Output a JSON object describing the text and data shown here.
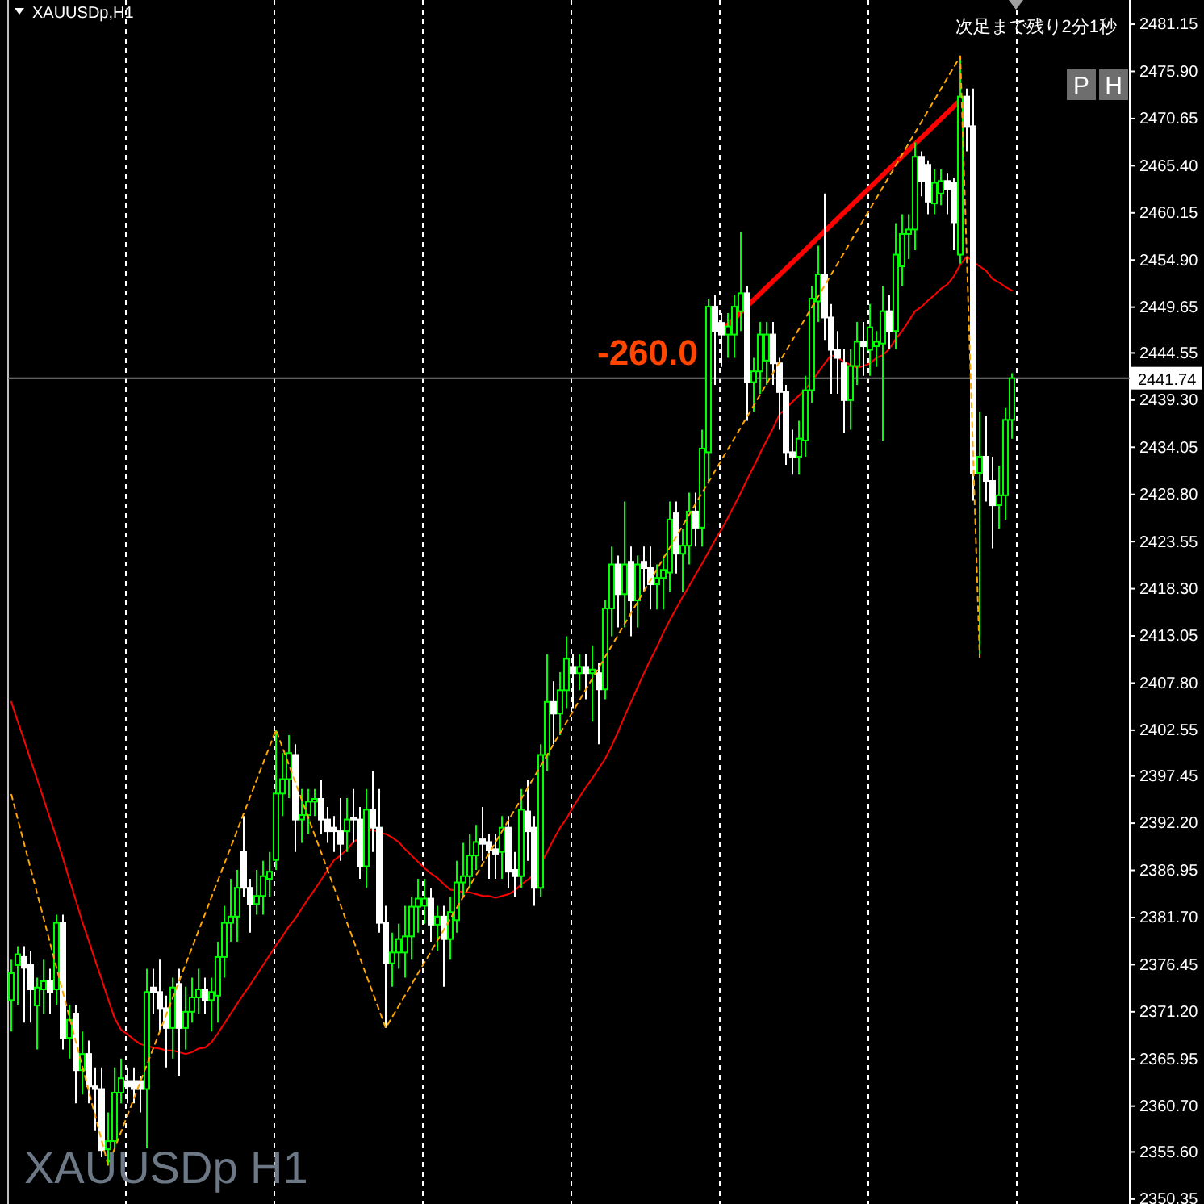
{
  "chart_data": {
    "type": "candlestick",
    "title": "XAUUSDp,H1",
    "annotations": [
      "XAUUSDp H1",
      "次足まで残り2分1秒",
      "P",
      "H",
      "-260.0"
    ],
    "categories": [
      null,
      null,
      null,
      null,
      null,
      null,
      null,
      null,
      null,
      null,
      null,
      null,
      null,
      null,
      null,
      null,
      null,
      null,
      null,
      null,
      null,
      null,
      null,
      null,
      null,
      null,
      null,
      null,
      null,
      null,
      null,
      null,
      null,
      null,
      null,
      null,
      null,
      null,
      null,
      null,
      null,
      null,
      null,
      null,
      null,
      null,
      null,
      null,
      null,
      null,
      null,
      null,
      null,
      null,
      null,
      null,
      null,
      null,
      null,
      null,
      null,
      null,
      null,
      null,
      null,
      null,
      null,
      null,
      null,
      null,
      null,
      null,
      null,
      null,
      null,
      null,
      null,
      null,
      null,
      null,
      null,
      null,
      null,
      null,
      null,
      null,
      null,
      null,
      null,
      null,
      null,
      null,
      null,
      null,
      null,
      null,
      null,
      null,
      null,
      null,
      null,
      null,
      null,
      null,
      null,
      null,
      null,
      null,
      null,
      null,
      null,
      null,
      null,
      null,
      null,
      null,
      null,
      null,
      null,
      null,
      null,
      null,
      null,
      null,
      null,
      null,
      null,
      null,
      null,
      null,
      null,
      null,
      null,
      null,
      null,
      null,
      null,
      null,
      null,
      null,
      null,
      null,
      null,
      null,
      null,
      null,
      null,
      null,
      null,
      null,
      null,
      null,
      null,
      null,
      null,
      null
    ],
    "ohlc": [
      [
        2372.5,
        2377,
        2369,
        2375.5
      ],
      [
        2376.4,
        2378.5,
        2372,
        2377.6
      ],
      [
        2377.3,
        2378.5,
        2370,
        2376.1
      ],
      [
        2376.4,
        2378,
        2370,
        2373.7
      ],
      [
        2371.9,
        2375,
        2367,
        2373.9
      ],
      [
        2373.7,
        2377,
        2371,
        2374.6
      ],
      [
        2374.6,
        2376,
        2371,
        2373.4
      ],
      [
        2373.7,
        2382,
        2372,
        2381.1
      ],
      [
        2381.1,
        2382,
        2367,
        2368.3
      ],
      [
        2368.3,
        2372,
        2366,
        2370.3
      ],
      [
        2371,
        2372,
        2361,
        2364.7
      ],
      [
        2364.7,
        2369,
        2362,
        2366.5
      ],
      [
        2366.5,
        2368,
        2361,
        2362.9
      ],
      [
        2362.9,
        2365,
        2358,
        2362.6
      ],
      [
        2362.6,
        2365,
        2355,
        2355.8
      ],
      [
        2355.9,
        2360,
        2354.1,
        2356.8
      ],
      [
        2356.8,
        2365,
        2356,
        2362.2
      ],
      [
        2362.2,
        2366,
        2361,
        2363.8
      ],
      [
        2363.5,
        2365,
        2361,
        2362.9
      ],
      [
        2363.5,
        2365,
        2361,
        2362.6
      ],
      [
        2363.5,
        2364,
        2360,
        2362.6
      ],
      [
        2362.6,
        2376,
        2356,
        2373.4
      ],
      [
        2373.9,
        2376,
        2371,
        2373.4
      ],
      [
        2373.4,
        2377,
        2369,
        2371.6
      ],
      [
        2371.6,
        2373,
        2365,
        2369.4
      ],
      [
        2369.4,
        2375,
        2366,
        2373.9
      ],
      [
        2374.3,
        2376,
        2364,
        2369.4
      ],
      [
        2369.4,
        2374,
        2367,
        2371.2
      ],
      [
        2371.2,
        2375,
        2370,
        2372.8
      ],
      [
        2372.8,
        2376,
        2371,
        2373.7
      ],
      [
        2373.7,
        2375,
        2371,
        2372.5
      ],
      [
        2372.5,
        2375,
        2369,
        2373.4
      ],
      [
        2373,
        2379,
        2370,
        2377.3
      ],
      [
        2377.3,
        2383,
        2375,
        2381.1
      ],
      [
        2381.1,
        2386,
        2379,
        2381.8
      ],
      [
        2381.8,
        2387,
        2379,
        2385
      ],
      [
        2389,
        2393,
        2384,
        2385
      ],
      [
        2385,
        2386,
        2380,
        2383.2
      ],
      [
        2383.2,
        2387,
        2382,
        2384.1
      ],
      [
        2384.1,
        2388,
        2382,
        2386.3
      ],
      [
        2386,
        2389,
        2384,
        2386.8
      ],
      [
        2388.1,
        2402.6,
        2387,
        2395.5
      ],
      [
        2395.5,
        2400,
        2393,
        2397.1
      ],
      [
        2397.1,
        2402,
        2395,
        2400
      ],
      [
        2399.8,
        2401,
        2389,
        2392.6
      ],
      [
        2392.6,
        2396,
        2390,
        2393.1
      ],
      [
        2393.1,
        2396,
        2391,
        2394.6
      ],
      [
        2394.6,
        2396,
        2393,
        2394.9
      ],
      [
        2394.9,
        2397,
        2391,
        2392.6
      ],
      [
        2392.6,
        2394,
        2390,
        2391.3
      ],
      [
        2391.7,
        2393,
        2389,
        2391.3
      ],
      [
        2391.3,
        2395,
        2388,
        2389.9
      ],
      [
        2391.3,
        2395,
        2389,
        2392.6
      ],
      [
        2392.8,
        2396,
        2390,
        2392.6
      ],
      [
        2392.6,
        2394,
        2386,
        2387.4
      ],
      [
        2387.4,
        2396,
        2385,
        2393.7
      ],
      [
        2393.7,
        2398,
        2389,
        2391.7
      ],
      [
        2391.7,
        2396,
        2380,
        2381.1
      ],
      [
        2381.1,
        2383,
        2369.4,
        2376.6
      ],
      [
        2376.6,
        2380,
        2374,
        2377.8
      ],
      [
        2377.8,
        2381,
        2376,
        2379.3
      ],
      [
        2377.8,
        2383,
        2375,
        2379.6
      ],
      [
        2379.6,
        2384,
        2377,
        2382.9
      ],
      [
        2382.9,
        2386,
        2380,
        2383.8
      ],
      [
        2383,
        2386,
        2381,
        2383.8
      ],
      [
        2383.8,
        2385,
        2379,
        2380.9
      ],
      [
        2380.9,
        2383,
        2378,
        2381.8
      ],
      [
        2381.8,
        2383,
        2374,
        2379.3
      ],
      [
        2379.3,
        2384,
        2377,
        2382.3
      ],
      [
        2381.4,
        2388,
        2380,
        2385.6
      ],
      [
        2385.6,
        2390,
        2384,
        2386.3
      ],
      [
        2386.3,
        2391,
        2385,
        2388.6
      ],
      [
        2388.6,
        2392,
        2387,
        2390.1
      ],
      [
        2390.4,
        2394,
        2388,
        2389.9
      ],
      [
        2390.1,
        2391,
        2386,
        2389.2
      ],
      [
        2389.3,
        2391,
        2386,
        2388.8
      ],
      [
        2389,
        2393,
        2386,
        2391.7
      ],
      [
        2391.7,
        2393,
        2385,
        2386.8
      ],
      [
        2387,
        2389,
        2384,
        2386.3
      ],
      [
        2386.3,
        2396,
        2385,
        2393.7
      ],
      [
        2393.5,
        2397,
        2388,
        2391.3
      ],
      [
        2391.7,
        2393,
        2383,
        2385
      ],
      [
        2385,
        2401,
        2384,
        2399.8
      ],
      [
        2399.8,
        2411,
        2398,
        2405.7
      ],
      [
        2405.7,
        2408,
        2401,
        2404.4
      ],
      [
        2404.4,
        2409,
        2402,
        2407
      ],
      [
        2407,
        2413,
        2405,
        2410.5
      ],
      [
        2409.6,
        2411,
        2405,
        2408.9
      ],
      [
        2408.9,
        2411,
        2407,
        2409.6
      ],
      [
        2409.6,
        2411,
        2406,
        2408.9
      ],
      [
        2408.9,
        2412,
        2403.5,
        2409.3
      ],
      [
        2408.9,
        2410,
        2401,
        2407.1
      ],
      [
        2407.1,
        2417,
        2406,
        2416.1
      ],
      [
        2416.1,
        2423,
        2413,
        2421
      ],
      [
        2421,
        2422,
        2414,
        2417.7
      ],
      [
        2417.7,
        2428,
        2414,
        2421
      ],
      [
        2421.3,
        2423,
        2413,
        2417
      ],
      [
        2417,
        2422,
        2414,
        2421
      ],
      [
        2421.3,
        2423,
        2418,
        2420.6
      ],
      [
        2420.6,
        2423,
        2416,
        2418.8
      ],
      [
        2418.8,
        2421,
        2416,
        2419.5
      ],
      [
        2419.5,
        2422,
        2416,
        2420.4
      ],
      [
        2420.1,
        2428,
        2418,
        2426
      ],
      [
        2426.7,
        2428,
        2420,
        2422.2
      ],
      [
        2422.2,
        2425,
        2418,
        2423.1
      ],
      [
        2423.1,
        2429,
        2421,
        2426.9
      ],
      [
        2426.9,
        2429,
        2423,
        2425.1
      ],
      [
        2425.1,
        2436,
        2423,
        2433.9
      ],
      [
        2433.5,
        2450.6,
        2430,
        2449.7
      ],
      [
        2449.7,
        2451,
        2441,
        2447
      ],
      [
        2447.9,
        2449,
        2443,
        2446.6
      ],
      [
        2446.6,
        2449,
        2444,
        2447.5
      ],
      [
        2446.6,
        2451,
        2444,
        2449.7
      ],
      [
        2449.2,
        2458,
        2447,
        2451.2
      ],
      [
        2451.2,
        2452,
        2437,
        2441.3
      ],
      [
        2441.3,
        2444,
        2438,
        2442.5
      ],
      [
        2442.5,
        2448,
        2440,
        2446.6
      ],
      [
        2443.7,
        2448,
        2441,
        2446.6
      ],
      [
        2446.6,
        2448,
        2441,
        2443.4
      ],
      [
        2443.4,
        2444,
        2436,
        2440.2
      ],
      [
        2440.2,
        2441,
        2432.1,
        2433.5
      ],
      [
        2433.5,
        2436,
        2431,
        2433
      ],
      [
        2433,
        2437,
        2431,
        2435
      ],
      [
        2434.8,
        2442,
        2433,
        2440.4
      ],
      [
        2440.4,
        2452,
        2439,
        2450.6
      ],
      [
        2450.3,
        2456.5,
        2448,
        2453.3
      ],
      [
        2453.3,
        2462.3,
        2446,
        2448.5
      ],
      [
        2448.5,
        2450,
        2440,
        2444.9
      ],
      [
        2444.9,
        2447,
        2440,
        2444
      ],
      [
        2443.4,
        2445,
        2435.7,
        2439.3
      ],
      [
        2439.3,
        2445,
        2436,
        2443.1
      ],
      [
        2443.1,
        2448,
        2441,
        2445.8
      ],
      [
        2445.8,
        2448,
        2442,
        2445.3
      ],
      [
        2444.9,
        2450,
        2442,
        2447.4
      ],
      [
        2445.3,
        2447,
        2443,
        2445.8
      ],
      [
        2445.6,
        2452,
        2434.8,
        2449.2
      ],
      [
        2449.2,
        2451,
        2445,
        2447
      ],
      [
        2447,
        2459,
        2445,
        2455.5
      ],
      [
        2454.2,
        2460,
        2452,
        2457.8
      ],
      [
        2457.8,
        2460,
        2455,
        2458.3
      ],
      [
        2458.3,
        2468,
        2456,
        2466.4
      ],
      [
        2466.4,
        2467,
        2462,
        2463.7
      ],
      [
        2465.5,
        2466,
        2460,
        2461.4
      ],
      [
        2461.2,
        2465,
        2460,
        2463.5
      ],
      [
        2462.3,
        2465,
        2461,
        2463.7
      ],
      [
        2463.7,
        2464.5,
        2460,
        2462.8
      ],
      [
        2463.5,
        2464,
        2456,
        2459.1
      ],
      [
        2455.5,
        2477.6,
        2454.5,
        2473.1
      ],
      [
        2473.1,
        2474,
        2467,
        2469.8
      ],
      [
        2469.8,
        2474,
        2428.1,
        2431.2
      ],
      [
        2431.2,
        2438,
        2410.7,
        2433
      ],
      [
        2433,
        2437.5,
        2428,
        2430.3
      ],
      [
        2430.3,
        2433,
        2422.8,
        2427.6
      ],
      [
        2427.6,
        2432,
        2425,
        2428.7
      ],
      [
        2428.7,
        2438.5,
        2426,
        2437.1
      ],
      [
        2437.1,
        2442.3,
        2435,
        2441.74
      ]
    ],
    "series": [
      {
        "type": "line",
        "color": "#ff0000",
        "values": [
          2405.7,
          2403.5,
          2401.4,
          2399.2,
          2397.1,
          2394.9,
          2392.7,
          2390.6,
          2388.3,
          2385.9,
          2383.6,
          2381.2,
          2379.1,
          2376.9,
          2374.8,
          2372.6,
          2370.5,
          2369.2,
          2368.7,
          2368.1,
          2367.6,
          2367.4,
          2367.2,
          2367.1,
          2366.9,
          2366.9,
          2366.7,
          2366.5,
          2366.7,
          2367.1,
          2367.2,
          2367.8,
          2368.8,
          2369.9,
          2371.0,
          2372.1,
          2373.2,
          2374.2,
          2375.3,
          2376.4,
          2377.5,
          2378.6,
          2379.6,
          2380.7,
          2381.6,
          2382.7,
          2383.8,
          2384.8,
          2385.9,
          2387.0,
          2388.1,
          2388.6,
          2389.3,
          2390.1,
          2390.6,
          2391.3,
          2391.5,
          2391.1,
          2391.0,
          2390.6,
          2390.1,
          2389.3,
          2388.6,
          2387.9,
          2387.2,
          2386.6,
          2386.1,
          2385.4,
          2384.8,
          2384.7,
          2384.5,
          2384.5,
          2384.3,
          2384.1,
          2384.1,
          2383.9,
          2384.1,
          2384.3,
          2384.7,
          2385.4,
          2385.9,
          2386.5,
          2387.7,
          2389.0,
          2390.4,
          2391.7,
          2392.7,
          2394.0,
          2395.1,
          2396.2,
          2397.2,
          2398.3,
          2399.4,
          2400.8,
          2402.4,
          2404.1,
          2405.7,
          2407.3,
          2408.9,
          2410.4,
          2411.8,
          2413.4,
          2414.8,
          2416.1,
          2417.4,
          2418.6,
          2419.9,
          2421.1,
          2422.4,
          2423.7,
          2424.9,
          2426.2,
          2427.6,
          2429.0,
          2430.5,
          2431.9,
          2433.4,
          2434.8,
          2436.2,
          2437.7,
          2438.4,
          2439.1,
          2439.8,
          2440.5,
          2441.4,
          2442.4,
          2443.4,
          2444.3,
          2444.0,
          2443.6,
          2443.2,
          2442.9,
          2443.1,
          2443.4,
          2444.0,
          2444.3,
          2445.0,
          2446.1,
          2447.0,
          2448.1,
          2449.2,
          2449.7,
          2450.4,
          2451.0,
          2451.7,
          2452.2,
          2453.1,
          2454.4,
          2455.3,
          2454.7,
          2454.2,
          2453.7,
          2452.8,
          2452.4,
          2451.9,
          2451.5
        ]
      },
      {
        "type": "line",
        "color": "#ffa500",
        "line_style": "dashed",
        "values": [
          2395.4,
          null,
          null,
          null,
          null,
          null,
          null,
          null,
          null,
          null,
          null,
          null,
          null,
          null,
          null,
          2354.1,
          null,
          null,
          null,
          null,
          null,
          null,
          null,
          null,
          null,
          null,
          null,
          null,
          null,
          null,
          null,
          null,
          null,
          null,
          null,
          null,
          null,
          null,
          null,
          null,
          null,
          2402.6,
          null,
          null,
          null,
          null,
          null,
          null,
          null,
          null,
          null,
          null,
          null,
          null,
          null,
          null,
          null,
          null,
          2369.4,
          null,
          null,
          null,
          null,
          null,
          null,
          null,
          null,
          null,
          null,
          null,
          null,
          null,
          null,
          null,
          null,
          null,
          null,
          null,
          null,
          null,
          null,
          null,
          null,
          null,
          null,
          null,
          null,
          null,
          null,
          null,
          null,
          null,
          null,
          null,
          null,
          null,
          null,
          null,
          null,
          null,
          null,
          null,
          null,
          null,
          null,
          null,
          null,
          null,
          null,
          null,
          null,
          null,
          null,
          null,
          null,
          null,
          null,
          null,
          null,
          null,
          null,
          null,
          null,
          null,
          null,
          null,
          null,
          null,
          null,
          null,
          null,
          null,
          null,
          null,
          null,
          null,
          null,
          null,
          null,
          null,
          null,
          null,
          null,
          null,
          null,
          null,
          null,
          2477.6,
          null,
          null,
          2410.7,
          null,
          null,
          null,
          null,
          null
        ]
      },
      {
        "type": "line",
        "color": "#ff0000",
        "values": [
          null,
          null,
          null,
          null,
          null,
          null,
          null,
          null,
          null,
          null,
          null,
          null,
          null,
          null,
          null,
          null,
          null,
          null,
          null,
          null,
          null,
          null,
          null,
          null,
          null,
          null,
          null,
          null,
          null,
          null,
          null,
          null,
          null,
          null,
          null,
          null,
          null,
          null,
          null,
          null,
          null,
          null,
          null,
          null,
          null,
          null,
          null,
          null,
          null,
          null,
          null,
          null,
          null,
          null,
          null,
          null,
          null,
          null,
          null,
          null,
          null,
          null,
          null,
          null,
          null,
          null,
          null,
          null,
          null,
          null,
          null,
          null,
          null,
          null,
          null,
          null,
          null,
          null,
          null,
          null,
          null,
          null,
          null,
          null,
          null,
          null,
          null,
          null,
          null,
          null,
          null,
          null,
          null,
          null,
          null,
          null,
          null,
          null,
          null,
          null,
          null,
          null,
          null,
          null,
          null,
          null,
          null,
          null,
          null,
          null,
          2447.0,
          null,
          null,
          null,
          null,
          null,
          null,
          null,
          null,
          null,
          null,
          null,
          null,
          null,
          null,
          null,
          null,
          null,
          null,
          null,
          null,
          null,
          null,
          null,
          null,
          null,
          null,
          null,
          null,
          null,
          null,
          null,
          null,
          null,
          null,
          null,
          null,
          2472.7,
          null,
          null,
          null,
          null,
          null,
          null,
          null,
          null
        ]
      }
    ],
    "ylim": [
      2349.8,
      2483.85
    ],
    "yticks": [
      {
        "value": 2481.15,
        "label": "2481.15"
      },
      {
        "value": 2475.9,
        "label": "2475.90"
      },
      {
        "value": 2470.65,
        "label": "2470.65"
      },
      {
        "value": 2465.4,
        "label": "2465.40"
      },
      {
        "value": 2460.15,
        "label": "2460.15"
      },
      {
        "value": 2454.9,
        "label": "2454.90"
      },
      {
        "value": 2449.65,
        "label": "2449.65"
      },
      {
        "value": 2444.55,
        "label": "2444.55"
      },
      {
        "value": 2439.3,
        "label": "2439.30"
      },
      {
        "value": 2434.05,
        "label": "2434.05"
      },
      {
        "value": 2428.8,
        "label": "2428.80"
      },
      {
        "value": 2423.55,
        "label": "2423.55"
      },
      {
        "value": 2418.3,
        "label": "2418.30"
      },
      {
        "value": 2413.05,
        "label": "2413.05"
      },
      {
        "value": 2407.8,
        "label": "2407.80"
      },
      {
        "value": 2402.55,
        "label": "2402.55"
      },
      {
        "value": 2397.45,
        "label": "2397.45"
      },
      {
        "value": 2392.2,
        "label": "2392.20"
      },
      {
        "value": 2386.95,
        "label": "2386.95"
      },
      {
        "value": 2381.7,
        "label": "2381.70"
      },
      {
        "value": 2376.45,
        "label": "2376.45"
      },
      {
        "value": 2371.2,
        "label": "2371.20"
      },
      {
        "value": 2365.95,
        "label": "2365.95"
      },
      {
        "value": 2360.7,
        "label": "2360.70"
      },
      {
        "value": 2355.6,
        "label": "2355.60"
      },
      {
        "value": 2350.35,
        "label": "2350.35"
      }
    ],
    "ref_lines": [
      {
        "axis": "y",
        "value": 2441.74,
        "label": "2441.74",
        "color": "#808080"
      }
    ],
    "tick_labels": "y"
  }
}
